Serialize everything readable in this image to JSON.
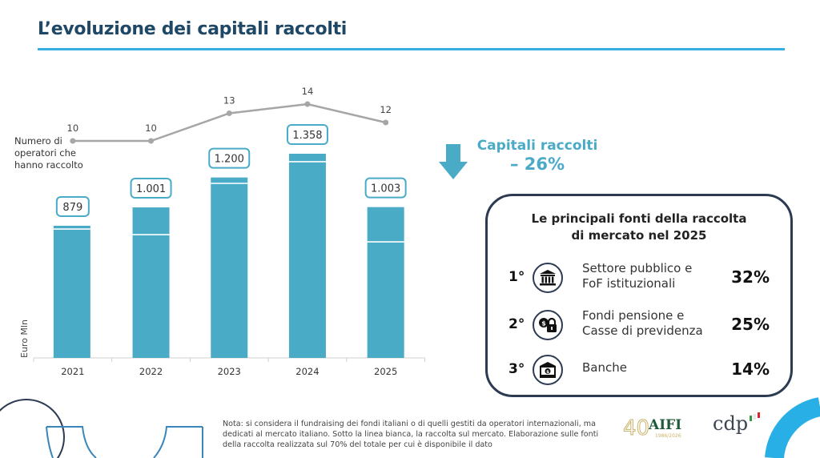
{
  "title": "L’evoluzione dei capitali raccolti",
  "chart_data": {
    "type": "bar",
    "title": "",
    "xlabel": "",
    "ylabel": "Euro Mln",
    "categories": [
      "2021",
      "2022",
      "2023",
      "2024",
      "2025"
    ],
    "series": [
      {
        "name": "Capitali raccolti (totale)",
        "values": [
          879,
          1001,
          1200,
          1358,
          1003
        ],
        "labels": [
          "879",
          "1.001",
          "1.200",
          "1.358",
          "1.003"
        ]
      },
      {
        "name": "Raccolta sul mercato (sotto la linea bianca, stimata)",
        "values": [
          857,
          820,
          1161,
          1305,
          772
        ]
      }
    ],
    "ylim": [
      0,
      1400
    ],
    "grid": false,
    "line_series": {
      "name": "Numero di operatori che hanno raccolto",
      "label_lines": [
        "Numero di",
        "operatori che",
        "hanno raccolto"
      ],
      "values": [
        10,
        10,
        13,
        14,
        12
      ]
    },
    "colors": {
      "bar": "#4aabc7",
      "line": "#a6a6a6",
      "label_border": "#4aabc7"
    }
  },
  "callout": {
    "line1": "Capitali raccolti",
    "line2": "– 26%",
    "icon": "down-arrow-icon",
    "color": "#4aaac8"
  },
  "sources_box": {
    "title_line1": "Le principali fonti della raccolta",
    "title_line2": "di mercato nel 2025",
    "items": [
      {
        "rank": "1°",
        "icon": "institution-icon",
        "label_line1": "Settore pubblico e",
        "label_line2": "FoF istituzionali",
        "percent": "32%"
      },
      {
        "rank": "2°",
        "icon": "pension-lock-icon",
        "label_line1": "Fondi pensione e",
        "label_line2": "Casse di previdenza",
        "percent": "25%"
      },
      {
        "rank": "3°",
        "icon": "bank-icon",
        "label_line1": "Banche",
        "label_line2": "",
        "percent": "14%"
      }
    ]
  },
  "note": "Nota: si considera il fundraising dei fondi italiani o di quelli gestiti da operatori internazionali, ma dedicati al mercato italiano. Sotto la linea bianca, la raccolta sul mercato. Elaborazione sulle fonti della raccolta realizzata sul 70% del totale per cui è disponibile il dato",
  "logos": {
    "aifi_text": "AIFI",
    "aifi_number": "40",
    "aifi_years": "1986/2026",
    "cdp_text": "cdp"
  },
  "colors": {
    "title": "#1f4766",
    "accent": "#35aee0",
    "box_border": "#2c3b52"
  }
}
